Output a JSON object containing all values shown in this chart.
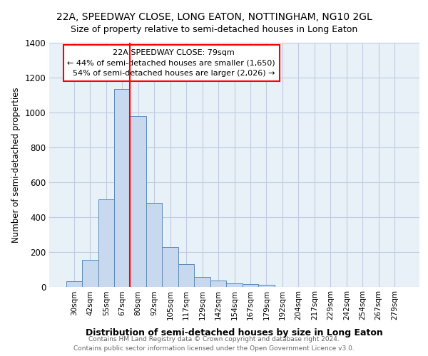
{
  "title1": "22A, SPEEDWAY CLOSE, LONG EATON, NOTTINGHAM, NG10 2GL",
  "title2": "Size of property relative to semi-detached houses in Long Eaton",
  "xlabel": "Distribution of semi-detached houses by size in Long Eaton",
  "ylabel": "Number of semi-detached properties",
  "footer1": "Contains HM Land Registry data © Crown copyright and database right 2024.",
  "footer2": "Contains public sector information licensed under the Open Government Licence v3.0.",
  "categories": [
    "30sqm",
    "42sqm",
    "55sqm",
    "67sqm",
    "80sqm",
    "92sqm",
    "105sqm",
    "117sqm",
    "129sqm",
    "142sqm",
    "154sqm",
    "167sqm",
    "179sqm",
    "192sqm",
    "204sqm",
    "217sqm",
    "229sqm",
    "242sqm",
    "254sqm",
    "267sqm",
    "279sqm"
  ],
  "values": [
    30,
    155,
    500,
    1135,
    980,
    480,
    225,
    130,
    57,
    35,
    20,
    13,
    10,
    0,
    0,
    0,
    0,
    0,
    0,
    0,
    0
  ],
  "bar_color": "#c8d8ee",
  "bar_edge_color": "#5a8ab8",
  "plot_bg_color": "#e8f0f8",
  "fig_bg_color": "#ffffff",
  "grid_color": "#c0cce0",
  "red_line_x": 3.5,
  "property_size": "79sqm",
  "pct_smaller": "44%",
  "n_smaller": "1,650",
  "pct_larger": "54%",
  "n_larger": "2,026",
  "ylim": [
    0,
    1400
  ],
  "yticks": [
    0,
    200,
    400,
    600,
    800,
    1000,
    1200,
    1400
  ],
  "annotation_label": "22A SPEEDWAY CLOSE: 79sqm",
  "ann_line1": "← 44% of semi-detached houses are smaller (1,650)",
  "ann_line2": "54% of semi-detached houses are larger (2,026) →"
}
